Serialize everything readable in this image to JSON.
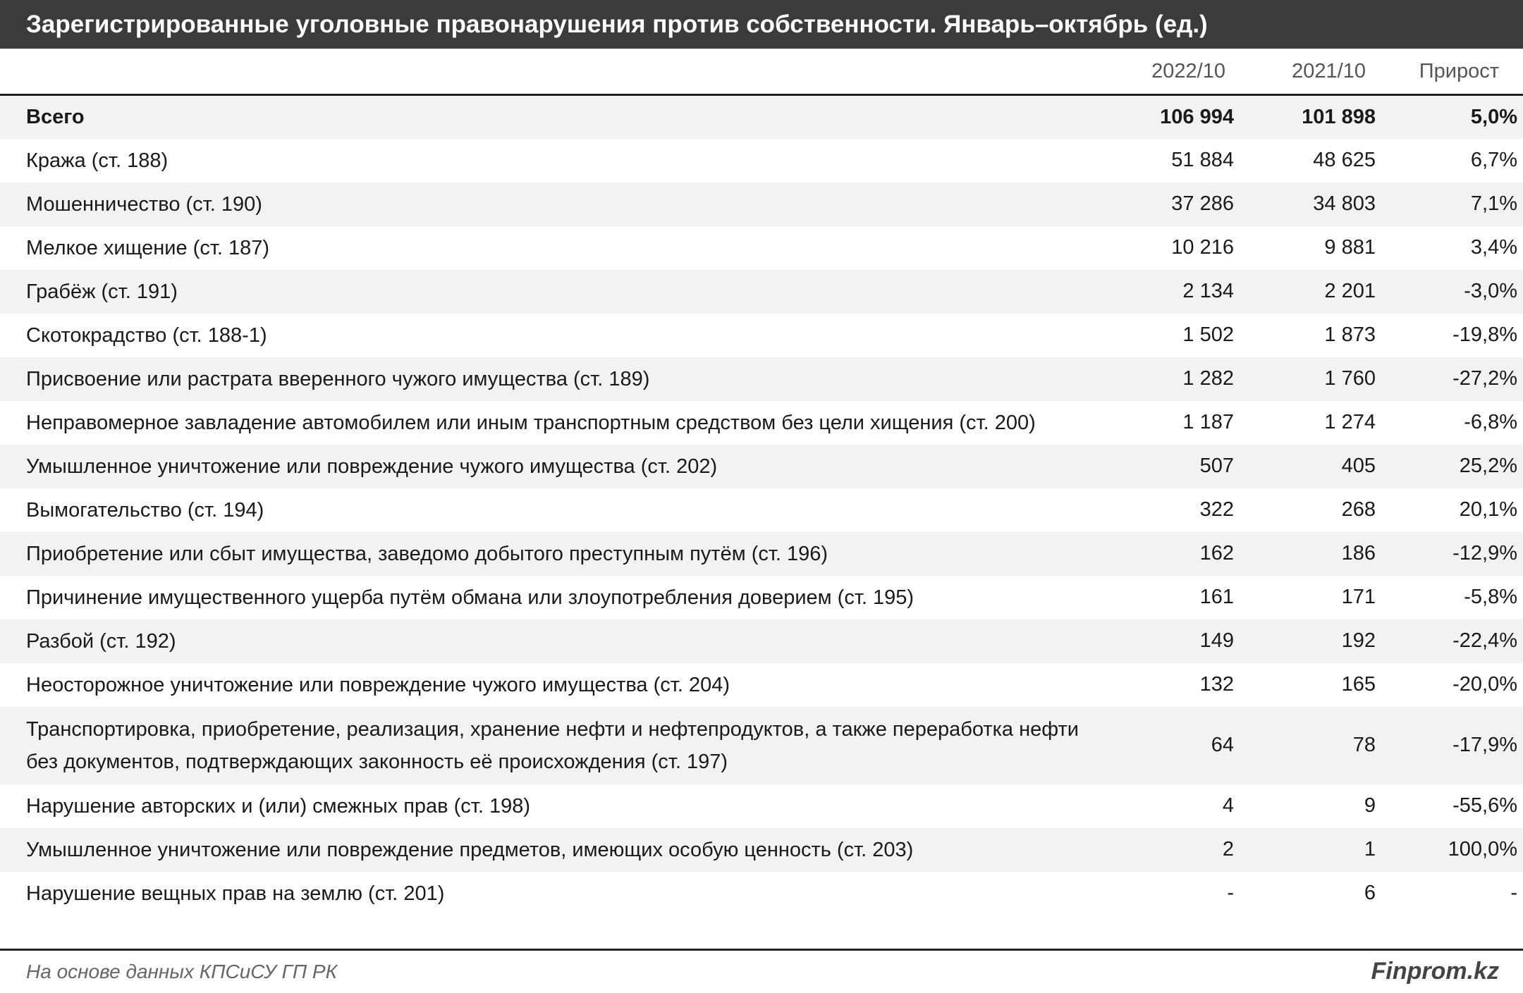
{
  "title": "Зарегистрированные уголовные правонарушения против собственности. Январь–октябрь (ед.)",
  "table": {
    "columns": [
      "",
      "2022/10",
      "2021/10",
      "Прирост"
    ],
    "rows": [
      [
        "Всего",
        "106 994",
        "101 898",
        "5,0%"
      ],
      [
        "Кража (ст. 188)",
        "51 884",
        "48 625",
        "6,7%"
      ],
      [
        "Мошенничество (ст. 190)",
        "37 286",
        "34 803",
        "7,1%"
      ],
      [
        "Мелкое хищение (ст. 187)",
        "10 216",
        "9 881",
        "3,4%"
      ],
      [
        "Грабёж (ст. 191)",
        "2 134",
        "2 201",
        "-3,0%"
      ],
      [
        "Скотокрадство (ст. 188-1)",
        "1 502",
        "1 873",
        "-19,8%"
      ],
      [
        "Присвоение или растрата вверенного чужого имущества (ст. 189)",
        "1 282",
        "1 760",
        "-27,2%"
      ],
      [
        "Неправомерное завладение автомобилем или иным транспортным средством без цели хищения (ст. 200)",
        "1 187",
        "1 274",
        "-6,8%"
      ],
      [
        "Умышленное уничтожение или повреждение чужого имущества (ст. 202)",
        "507",
        "405",
        "25,2%"
      ],
      [
        "Вымогательство (ст. 194)",
        "322",
        "268",
        "20,1%"
      ],
      [
        "Приобретение или сбыт имущества, заведомо добытого преступным путём (ст. 196)",
        "162",
        "186",
        "-12,9%"
      ],
      [
        "Причинение имущественного ущерба путём обмана или злоупотребления доверием (ст. 195)",
        "161",
        "171",
        "-5,8%"
      ],
      [
        "Разбой (ст. 192)",
        "149",
        "192",
        "-22,4%"
      ],
      [
        "Неосторожное уничтожение или повреждение чужого имущества (ст. 204)",
        "132",
        "165",
        "-20,0%"
      ],
      [
        "Транспортировка, приобретение, реализация, хранение нефти и нефтепродуктов, а также переработка нефти без документов, подтверждающих законность её происхождения (ст. 197)",
        "64",
        "78",
        "-17,9%"
      ],
      [
        "Нарушение авторских и (или) смежных прав (ст. 198)",
        "4",
        "9",
        "-55,6%"
      ],
      [
        "Умышленное уничтожение или повреждение предметов, имеющих особую ценность (ст. 203)",
        "2",
        "1",
        "100,0%"
      ],
      [
        "Нарушение вещных прав на землю (ст. 201)",
        "-",
        "6",
        "-"
      ]
    ]
  },
  "footer": {
    "source": "На основе данных КПСиСУ ГП РК",
    "brand": "Finprom.kz"
  }
}
